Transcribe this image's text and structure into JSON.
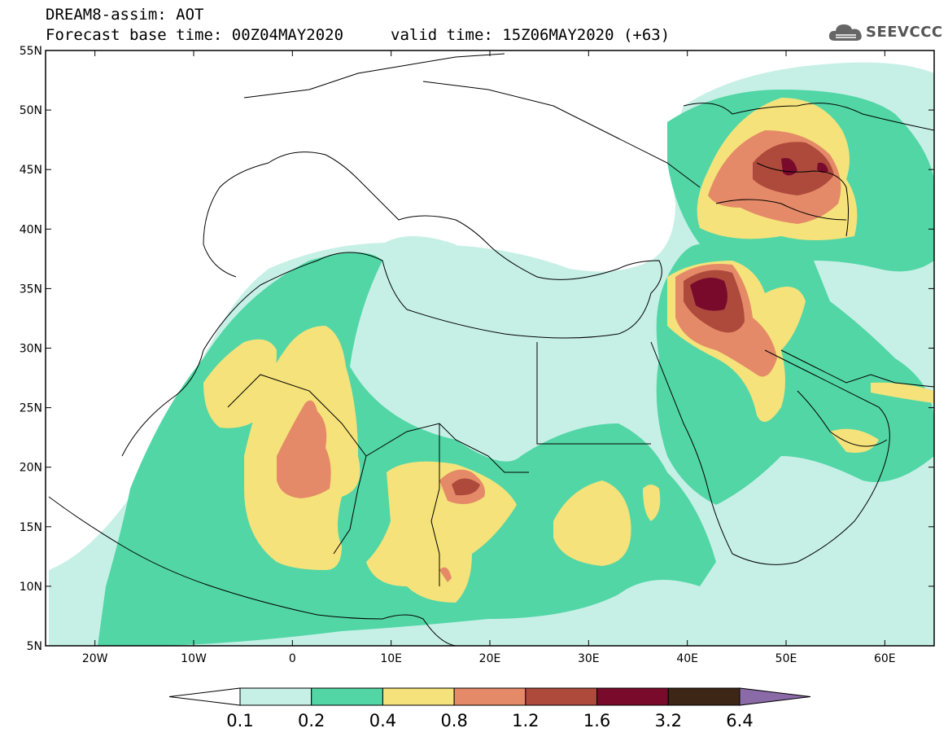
{
  "header": {
    "title": "DREAM8-assim: AOT",
    "base_time": "Forecast base time: 00Z04MAY2020",
    "valid_time": "valid time: 15Z06MAY2020 (+63)"
  },
  "logo": {
    "text": "SEEVCCC",
    "icon": "cloud-icon"
  },
  "map": {
    "lon_range": [
      -25,
      65
    ],
    "lat_range": [
      5,
      55
    ],
    "lon_ticks": [
      {
        "lon": -20,
        "label": "20W"
      },
      {
        "lon": -10,
        "label": "10W"
      },
      {
        "lon": 0,
        "label": "0"
      },
      {
        "lon": 10,
        "label": "10E"
      },
      {
        "lon": 20,
        "label": "20E"
      },
      {
        "lon": 30,
        "label": "30E"
      },
      {
        "lon": 40,
        "label": "40E"
      },
      {
        "lon": 50,
        "label": "50E"
      },
      {
        "lon": 60,
        "label": "60E"
      }
    ],
    "lat_ticks": [
      {
        "lat": 55,
        "label": "55N"
      },
      {
        "lat": 50,
        "label": "50N"
      },
      {
        "lat": 45,
        "label": "45N"
      },
      {
        "lat": 40,
        "label": "40N"
      },
      {
        "lat": 35,
        "label": "35N"
      },
      {
        "lat": 30,
        "label": "30N"
      },
      {
        "lat": 25,
        "label": "25N"
      },
      {
        "lat": 20,
        "label": "20N"
      },
      {
        "lat": 15,
        "label": "15N"
      },
      {
        "lat": 10,
        "label": "10N"
      },
      {
        "lat": 5,
        "label": "5N"
      }
    ]
  },
  "colorbar": {
    "levels": [
      "0.1",
      "0.2",
      "0.4",
      "0.8",
      "1.2",
      "1.6",
      "3.2",
      "6.4"
    ],
    "colors": [
      "#ffffff",
      "#c6f0e6",
      "#52d6a6",
      "#f5e27a",
      "#e58a68",
      "#ad4a3c",
      "#7a0a2c",
      "#3d2616",
      "#8b6aa8"
    ]
  }
}
